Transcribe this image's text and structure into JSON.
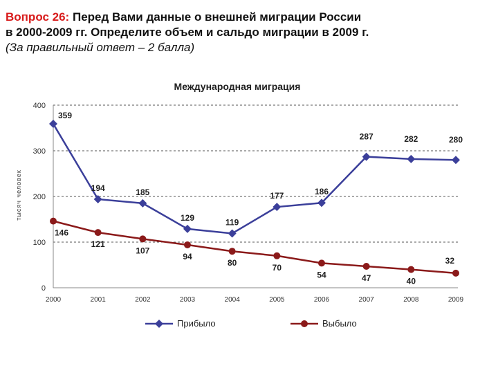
{
  "question": {
    "label": "Вопрос 26:",
    "text_line1": "Перед Вами данные о внешней миграции России",
    "text_line2": "в 2000-2009 гг. Определите объем и сальдо миграции в 2009 г.",
    "note": "(За правильный ответ – 2 балла)"
  },
  "chart_data": {
    "type": "line",
    "title": "Международная миграция",
    "ylabel": "тысяч человек",
    "xlabel": "",
    "ylim": [
      0,
      400
    ],
    "yticks": [
      0,
      100,
      200,
      300,
      400
    ],
    "grid": "horizontal dashed",
    "legend_position": "bottom",
    "categories": [
      "2000",
      "2001",
      "2002",
      "2003",
      "2004",
      "2005",
      "2006",
      "2007",
      "2008",
      "2009"
    ],
    "series": [
      {
        "name": "Прибыло",
        "color": "#3b3f9a",
        "marker": "diamond",
        "values": [
          359,
          194,
          185,
          129,
          119,
          177,
          186,
          287,
          282,
          280
        ]
      },
      {
        "name": "Выбыло",
        "color": "#8b1a1a",
        "marker": "circle",
        "values": [
          146,
          121,
          107,
          94,
          80,
          70,
          54,
          47,
          40,
          32
        ]
      }
    ]
  }
}
